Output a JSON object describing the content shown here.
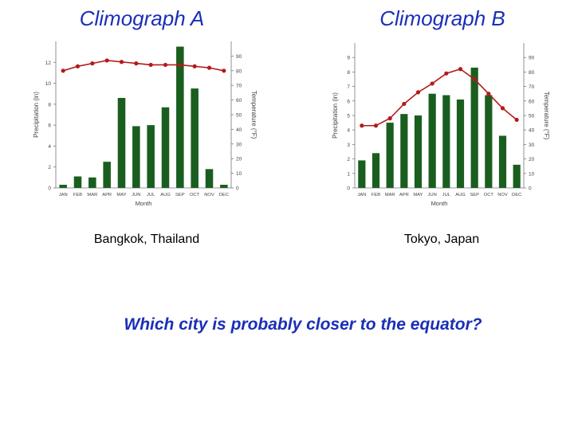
{
  "slide": {
    "question": "Which city is probably closer to the equator?",
    "accent_color": "#1a2fb8"
  },
  "chart_data": [
    {
      "type": "bar",
      "title": "Climograph A",
      "caption": "Bangkok, Thailand",
      "categories": [
        "JAN",
        "FEB",
        "MAR",
        "APR",
        "MAY",
        "JUN",
        "JUL",
        "AUG",
        "SEP",
        "OCT",
        "NOV",
        "DEC"
      ],
      "series": [
        {
          "name": "",
          "kind": "bar",
          "axis": "left",
          "color": "#1a5e1f",
          "values": [
            0.3,
            1.1,
            1.0,
            2.5,
            8.6,
            5.9,
            6.0,
            7.7,
            13.5,
            9.5,
            1.8,
            0.3
          ]
        },
        {
          "name": "",
          "kind": "line",
          "axis": "right",
          "color": "#b31a1a",
          "values": [
            80,
            83,
            85,
            87,
            86,
            85,
            84,
            84,
            84,
            83,
            82,
            80
          ]
        }
      ],
      "xlabel": "Month",
      "ylabel": "Precipitation (in)",
      "y2label": "Temperature (°F)",
      "ylim": [
        0,
        14
      ],
      "yticks": [
        0,
        2,
        4,
        6,
        8,
        10,
        12
      ],
      "y2lim": [
        0,
        100
      ],
      "y2ticks": [
        0,
        10,
        20,
        30,
        40,
        50,
        60,
        70,
        80,
        90
      ],
      "grid": false
    },
    {
      "type": "bar",
      "title": "Climograph B",
      "caption": "Tokyo, Japan",
      "categories": [
        "JAN",
        "FEB",
        "MAR",
        "APR",
        "MAY",
        "JUN",
        "JUL",
        "AUG",
        "SEP",
        "OCT",
        "NOV",
        "DEC"
      ],
      "series": [
        {
          "name": "",
          "kind": "bar",
          "axis": "left",
          "color": "#1a5e1f",
          "values": [
            1.9,
            2.4,
            4.5,
            5.1,
            5.0,
            6.5,
            6.4,
            6.1,
            8.3,
            6.4,
            3.6,
            1.6
          ]
        },
        {
          "name": "",
          "kind": "line",
          "axis": "right",
          "color": "#b31a1a",
          "values": [
            43,
            43,
            48,
            58,
            66,
            72,
            79,
            82,
            75,
            65,
            55,
            47
          ]
        }
      ],
      "xlabel": "Month",
      "ylabel": "Precipitation (in)",
      "y2label": "Temperature (°F)",
      "ylim": [
        0,
        10
      ],
      "yticks": [
        0,
        1,
        2,
        3,
        4,
        5,
        6,
        7,
        8,
        9
      ],
      "y2lim": [
        0,
        100
      ],
      "y2ticks": [
        0,
        10,
        20,
        30,
        40,
        50,
        60,
        70,
        80,
        90
      ],
      "grid": false
    }
  ]
}
